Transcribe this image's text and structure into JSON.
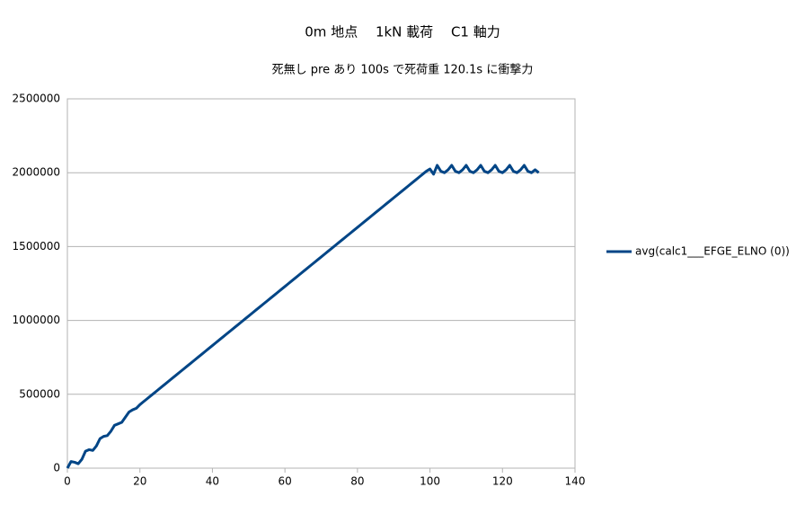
{
  "chart_data": {
    "type": "line",
    "title": "0m 地点　 1kN 載荷　 C1 軸力",
    "subtitle": "死無し pre あり 100s で死荷重 120.1s に衝撃力",
    "x": [
      0,
      1,
      2,
      3,
      4,
      5,
      6,
      7,
      8,
      9,
      10,
      11,
      12,
      13,
      14,
      15,
      16,
      17,
      18,
      19,
      20,
      21,
      22,
      23,
      24,
      25,
      26,
      27,
      28,
      29,
      30,
      31,
      32,
      33,
      34,
      35,
      36,
      37,
      38,
      39,
      40,
      41,
      42,
      43,
      44,
      45,
      46,
      47,
      48,
      49,
      50,
      51,
      52,
      53,
      54,
      55,
      56,
      57,
      58,
      59,
      60,
      61,
      62,
      63,
      64,
      65,
      66,
      67,
      68,
      69,
      70,
      71,
      72,
      73,
      74,
      75,
      76,
      77,
      78,
      79,
      80,
      81,
      82,
      83,
      84,
      85,
      86,
      87,
      88,
      89,
      90,
      91,
      92,
      93,
      94,
      95,
      96,
      97,
      98,
      99,
      100,
      101,
      102,
      103,
      104,
      105,
      106,
      107,
      108,
      109,
      110,
      111,
      112,
      113,
      114,
      115,
      116,
      117,
      118,
      119,
      120,
      121,
      122,
      123,
      124,
      125,
      126,
      127,
      128,
      129,
      130
    ],
    "series": [
      {
        "name": "avg(calc1___EFGE_ELNO (0))",
        "color": "#004586",
        "values": [
          0,
          45000,
          40000,
          30000,
          60000,
          115000,
          125000,
          120000,
          150000,
          200000,
          215000,
          220000,
          250000,
          290000,
          300000,
          310000,
          345000,
          380000,
          395000,
          405000,
          430000,
          450000,
          470000,
          490000,
          510000,
          530000,
          550000,
          570000,
          590000,
          610000,
          630000,
          650000,
          670000,
          690000,
          710000,
          730000,
          750000,
          770000,
          790000,
          810000,
          830000,
          850000,
          870000,
          890000,
          910000,
          930000,
          950000,
          970000,
          990000,
          1010000,
          1030000,
          1050000,
          1070000,
          1090000,
          1110000,
          1130000,
          1150000,
          1170000,
          1190000,
          1210000,
          1230000,
          1250000,
          1270000,
          1290000,
          1310000,
          1330000,
          1350000,
          1370000,
          1390000,
          1410000,
          1430000,
          1450000,
          1470000,
          1490000,
          1510000,
          1530000,
          1550000,
          1570000,
          1590000,
          1610000,
          1630000,
          1650000,
          1670000,
          1690000,
          1710000,
          1730000,
          1750000,
          1770000,
          1790000,
          1810000,
          1830000,
          1850000,
          1870000,
          1890000,
          1910000,
          1930000,
          1950000,
          1970000,
          1990000,
          2010000,
          2025000,
          1990000,
          2050000,
          2010000,
          2000000,
          2020000,
          2050000,
          2010000,
          2000000,
          2020000,
          2050000,
          2010000,
          2000000,
          2020000,
          2050000,
          2010000,
          2000000,
          2020000,
          2050000,
          2010000,
          2000000,
          2020000,
          2050000,
          2010000,
          2000000,
          2020000,
          2050000,
          2010000,
          2000000,
          2020000,
          2000000
        ]
      }
    ],
    "xlim": [
      0,
      140
    ],
    "xticks": [
      0,
      20,
      40,
      60,
      80,
      100,
      120,
      140
    ],
    "ylim": [
      0,
      2500000
    ],
    "yticks": [
      0,
      500000,
      1000000,
      1500000,
      2000000,
      2500000
    ],
    "grid": true,
    "legend": "right"
  }
}
